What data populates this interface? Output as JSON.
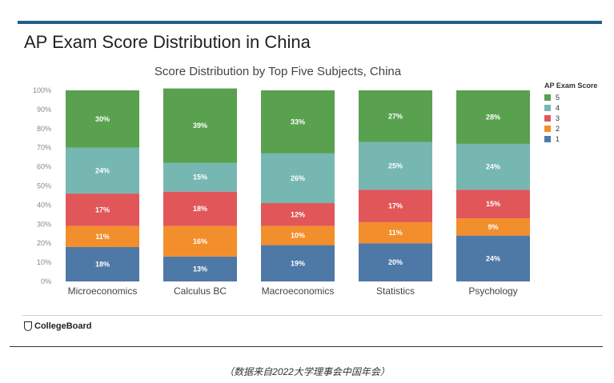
{
  "slide_title": "AP Exam Score Distribution in China",
  "logo_text": "CollegeBoard",
  "caption": "（数据来自2022大学理事会中国年会）",
  "chart_data": {
    "type": "bar",
    "stacked": true,
    "title": "Score Distribution by Top Five Subjects, China",
    "xlabel": "",
    "ylabel": "",
    "ylim": [
      0,
      100
    ],
    "yticks": [
      "0%",
      "10%",
      "20%",
      "30%",
      "40%",
      "50%",
      "60%",
      "70%",
      "80%",
      "90%",
      "100%"
    ],
    "categories": [
      "Microeconomics",
      "Calculus BC",
      "Macroeconomics",
      "Statistics",
      "Psychology"
    ],
    "legend_title": "AP Exam Score",
    "legend_position": "right",
    "series": [
      {
        "name": "1",
        "color": "#4e79a7",
        "values": [
          18,
          13,
          19,
          20,
          24
        ],
        "labels": [
          "18%",
          "13%",
          "19%",
          "20%",
          "24%"
        ]
      },
      {
        "name": "2",
        "color": "#f28e2b",
        "values": [
          11,
          16,
          10,
          11,
          9
        ],
        "labels": [
          "11%",
          "16%",
          "10%",
          "11%",
          "9%"
        ]
      },
      {
        "name": "3",
        "color": "#e15759",
        "values": [
          17,
          18,
          12,
          17,
          15
        ],
        "labels": [
          "17%",
          "18%",
          "12%",
          "17%",
          "15%"
        ]
      },
      {
        "name": "4",
        "color": "#76b7b2",
        "values": [
          24,
          15,
          26,
          25,
          24
        ],
        "labels": [
          "24%",
          "15%",
          "26%",
          "25%",
          "24%"
        ]
      },
      {
        "name": "5",
        "color": "#59a14f",
        "values": [
          30,
          39,
          33,
          27,
          28
        ],
        "labels": [
          "30%",
          "39%",
          "33%",
          "27%",
          "28%"
        ]
      }
    ]
  }
}
